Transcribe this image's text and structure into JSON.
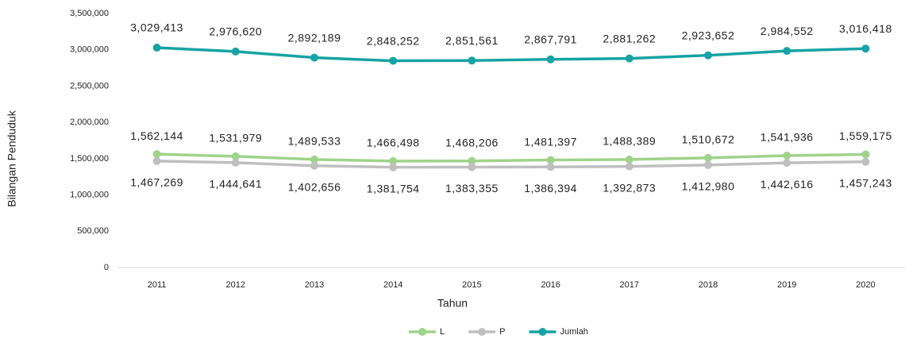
{
  "chart_data": {
    "type": "line",
    "categories": [
      "2011",
      "2012",
      "2013",
      "2014",
      "2015",
      "2016",
      "2017",
      "2018",
      "2019",
      "2020"
    ],
    "series": [
      {
        "name": "L",
        "color": "#9fd38a",
        "values": [
          1562144,
          1531979,
          1489533,
          1466498,
          1468206,
          1481397,
          1488389,
          1510672,
          1541936,
          1559175
        ],
        "value_labels": [
          "1,562,144",
          "1,531,979",
          "1,489,533",
          "1,466,498",
          "1,468,206",
          "1,481,397",
          "1,488,389",
          "1,510,672",
          "1,541,936",
          "1,559,175"
        ]
      },
      {
        "name": "P",
        "color": "#bfbfbf",
        "values": [
          1467269,
          1444641,
          1402656,
          1381754,
          1383355,
          1386394,
          1392873,
          1412980,
          1442616,
          1457243
        ],
        "value_labels": [
          "1,467,269",
          "1,444,641",
          "1,402,656",
          "1,381,754",
          "1,383,355",
          "1,386,394",
          "1,392,873",
          "1,412,980",
          "1,442,616",
          "1,457,243"
        ]
      },
      {
        "name": "Jumlah",
        "color": "#17a3a5",
        "values": [
          3029413,
          2976620,
          2892189,
          2848252,
          2851561,
          2867791,
          2881262,
          2923652,
          2984552,
          3016418
        ],
        "value_labels": [
          "3,029,413",
          "2,976,620",
          "2,892,189",
          "2,848,252",
          "2,851,561",
          "2,867,791",
          "2,881,262",
          "2,923,652",
          "2,984,552",
          "3,016,418"
        ]
      }
    ],
    "ylim": [
      0,
      3500000
    ],
    "yticks": [
      0,
      {
        "value": 500000,
        "label": "500,000"
      },
      {
        "value": 1000000,
        "label": "1,000,000"
      },
      {
        "value": 1500000,
        "label": "1,500,000"
      },
      {
        "value": 2000000,
        "label": "2,000,000"
      },
      {
        "value": 2500000,
        "label": "2,500,000"
      },
      {
        "value": 3000000,
        "label": "3,000,000"
      },
      {
        "value": 3500000,
        "label": "3,500,000"
      }
    ],
    "xlabel": "Tahun",
    "ylabel": "Bilangan Penduduk",
    "grid": false,
    "legend": "bottom"
  }
}
